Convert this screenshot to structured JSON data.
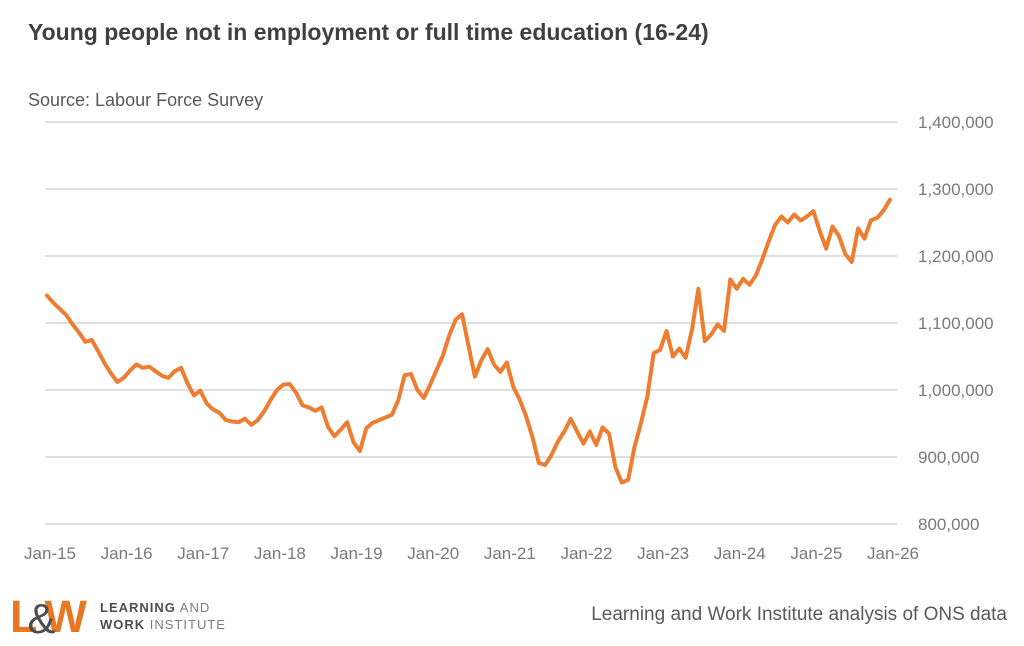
{
  "header": {
    "title": "Young people not in employment or full time education (16-24)",
    "source": "Source: Labour Force Survey"
  },
  "chart_data": {
    "type": "line",
    "series_name": "Young people not in employment or full time education (16-24)",
    "frequency": "monthly",
    "x_start": "Jan-15",
    "x_end": "Jan-26",
    "x_tick_labels": [
      "Jan-15",
      "Jan-16",
      "Jan-17",
      "Jan-18",
      "Jan-19",
      "Jan-20",
      "Jan-21",
      "Jan-22",
      "Jan-23",
      "Jan-24",
      "Jan-25",
      "Jan-26"
    ],
    "y_ticks": [
      1400000,
      1300000,
      1200000,
      1100000,
      1000000,
      900000,
      800000
    ],
    "y_tick_labels": [
      "1,400,000",
      "1,300,000",
      "1,200,000",
      "1,100,000",
      "1,000,000",
      "900,000",
      "800,000"
    ],
    "ylim": [
      800000,
      1400000
    ],
    "grid": true,
    "legend": "none",
    "y_axis_side": "right",
    "line_color": "#ED7D31",
    "grid_color": "#E0E0E0",
    "axis_label_color": "#7A7A7A",
    "values": [
      1141000,
      1130000,
      1121000,
      1112000,
      1098000,
      1086000,
      1072000,
      1075000,
      1058000,
      1040000,
      1025000,
      1012000,
      1018000,
      1029000,
      1038000,
      1033000,
      1035000,
      1028000,
      1021000,
      1018000,
      1028000,
      1033000,
      1010000,
      992000,
      999000,
      980000,
      971000,
      966000,
      955000,
      953000,
      952000,
      957000,
      948000,
      955000,
      968000,
      985000,
      1000000,
      1008000,
      1009000,
      996000,
      977000,
      974000,
      969000,
      974000,
      945000,
      931000,
      941000,
      952000,
      922000,
      909000,
      943000,
      951000,
      955000,
      959000,
      963000,
      985000,
      1022000,
      1024000,
      1000000,
      988000,
      1008000,
      1030000,
      1052000,
      1082000,
      1105000,
      1113000,
      1066000,
      1020000,
      1044000,
      1061000,
      1038000,
      1027000,
      1041000,
      1005000,
      986000,
      961000,
      930000,
      891000,
      888000,
      903000,
      923000,
      938000,
      957000,
      938000,
      920000,
      938000,
      918000,
      944000,
      935000,
      885000,
      862000,
      866000,
      915000,
      950000,
      990000,
      1055000,
      1060000,
      1088000,
      1050000,
      1062000,
      1048000,
      1090000,
      1151000,
      1073000,
      1083000,
      1098000,
      1088000,
      1165000,
      1151000,
      1166000,
      1157000,
      1171000,
      1195000,
      1222000,
      1246000,
      1259000,
      1250000,
      1262000,
      1253000,
      1259000,
      1267000,
      1237000,
      1211000,
      1244000,
      1230000,
      1203000,
      1191000,
      1241000,
      1226000,
      1253000,
      1257000,
      1268000,
      1284000
    ]
  },
  "footer": {
    "logo": {
      "l": "L",
      "amp": "&",
      "w": "W",
      "line1_bold": "LEARNING",
      "line1_light": " AND",
      "line2_bold": "WORK",
      "line2_light": " INSTITUTE"
    },
    "attribution": "Learning and Work Institute analysis of ONS data"
  }
}
